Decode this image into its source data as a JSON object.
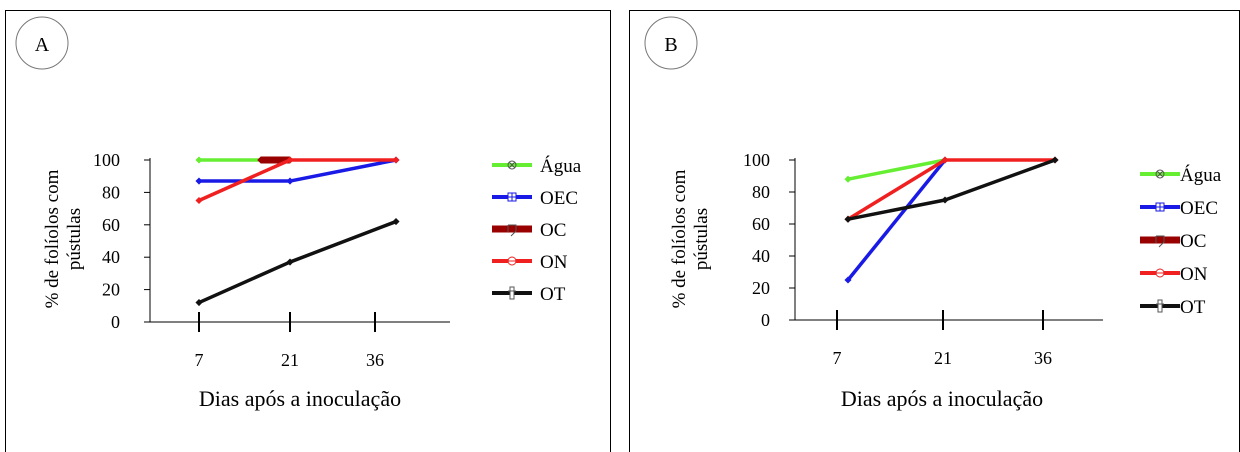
{
  "chart_data": [
    {
      "type": "line",
      "panel_label": "A",
      "categories": [
        "7",
        "21",
        "36"
      ],
      "xlabel": "Dias após a inoculação",
      "ylabel": "% de folíolos com pústulas",
      "ylim": [
        0,
        100
      ],
      "yticks": [
        "0",
        "20",
        "40",
        "60",
        "80",
        "100"
      ],
      "legend_position": "right",
      "series": [
        {
          "name": "Água",
          "color": "#66ee33",
          "marker": "x-circle-icon",
          "x": [
            7,
            21
          ],
          "values": [
            100,
            100
          ]
        },
        {
          "name": "OEC",
          "color": "#1a1ae6",
          "marker": "square-plus-icon",
          "x": [
            7,
            21,
            36
          ],
          "values": [
            87,
            87,
            100
          ]
        },
        {
          "name": "OC",
          "color": "#990000",
          "marker": "hook-square-icon",
          "x": [
            16.5,
            21
          ],
          "values": [
            100,
            100
          ]
        },
        {
          "name": "ON",
          "color": "#f02020",
          "marker": "circle-bar-icon",
          "x": [
            7,
            21,
            36
          ],
          "values": [
            75,
            100,
            100
          ]
        },
        {
          "name": "OT",
          "color": "#111111",
          "marker": "dagger-icon",
          "x": [
            7,
            21,
            36
          ],
          "values": [
            12,
            37,
            62
          ]
        }
      ]
    },
    {
      "type": "line",
      "panel_label": "B",
      "categories": [
        "7",
        "21",
        "36"
      ],
      "xlabel": "Dias após a inoculação",
      "ylabel": "% de folíolos com pústulas",
      "ylim": [
        0,
        100
      ],
      "yticks": [
        "0",
        "20",
        "40",
        "60",
        "80",
        "100"
      ],
      "legend_position": "right",
      "series": [
        {
          "name": "Água",
          "color": "#66ee33",
          "marker": "x-circle-icon",
          "x": [
            7,
            21
          ],
          "values": [
            88,
            100
          ]
        },
        {
          "name": "OEC",
          "color": "#1a1ae6",
          "marker": "square-plus-icon",
          "x": [
            7,
            21
          ],
          "values": [
            25,
            100
          ]
        },
        {
          "name": "OC",
          "color": "#990000",
          "marker": "hook-square-icon",
          "x": [],
          "values": []
        },
        {
          "name": "ON",
          "color": "#f02020",
          "marker": "circle-bar-icon",
          "x": [
            7,
            21,
            36
          ],
          "values": [
            63,
            100,
            100
          ]
        },
        {
          "name": "OT",
          "color": "#111111",
          "marker": "dagger-icon",
          "x": [
            7,
            21,
            36
          ],
          "values": [
            63,
            75,
            100
          ]
        }
      ]
    }
  ]
}
